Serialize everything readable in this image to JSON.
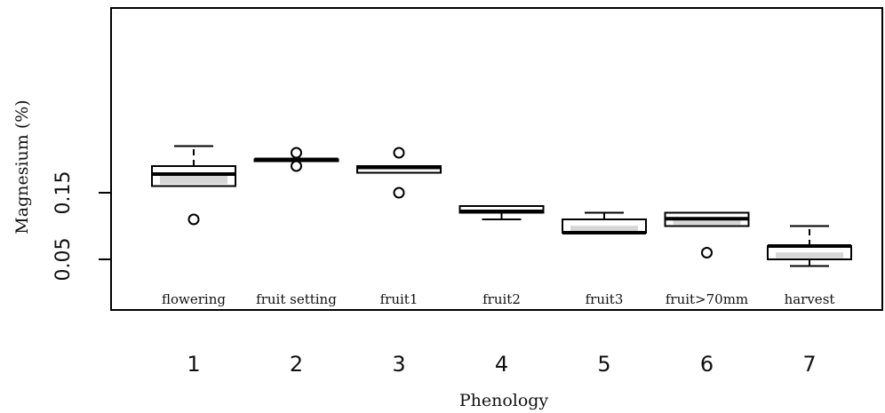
{
  "chart_data": {
    "type": "boxplot",
    "xlabel": "Phenology",
    "ylabel": "Magnesium (%)",
    "ylim": [
      0.0,
      0.22
    ],
    "y_ticks": [
      0.05,
      0.15
    ],
    "y_tick_labels": [
      "0.05",
      "0.15"
    ],
    "categories": [
      "1",
      "2",
      "3",
      "4",
      "5",
      "6",
      "7"
    ],
    "stage_labels": [
      "flowering",
      "fruit setting",
      "fruit1",
      "fruit2",
      "fruit3",
      "fruit>70mm",
      "harvest"
    ],
    "boxes": [
      {
        "whisker_low": 0.16,
        "q1": 0.16,
        "median": 0.178,
        "q3": 0.19,
        "whisker_high": 0.22,
        "outliers": [
          0.11
        ]
      },
      {
        "whisker_low": 0.2,
        "q1": 0.2,
        "median": 0.2,
        "q3": 0.2,
        "whisker_high": 0.2,
        "outliers": [
          0.21,
          0.19
        ]
      },
      {
        "whisker_low": 0.18,
        "q1": 0.18,
        "median": 0.188,
        "q3": 0.19,
        "whisker_high": 0.19,
        "outliers": [
          0.21,
          0.15
        ]
      },
      {
        "whisker_low": 0.11,
        "q1": 0.12,
        "median": 0.122,
        "q3": 0.13,
        "whisker_high": 0.13,
        "outliers": []
      },
      {
        "whisker_low": 0.09,
        "q1": 0.09,
        "median": 0.09,
        "q3": 0.11,
        "whisker_high": 0.12,
        "outliers": []
      },
      {
        "whisker_low": 0.1,
        "q1": 0.1,
        "median": 0.111,
        "q3": 0.12,
        "whisker_high": 0.12,
        "outliers": [
          0.06
        ]
      },
      {
        "whisker_low": 0.04,
        "q1": 0.05,
        "median": 0.07,
        "q3": 0.07,
        "whisker_high": 0.1,
        "outliers": []
      }
    ]
  }
}
